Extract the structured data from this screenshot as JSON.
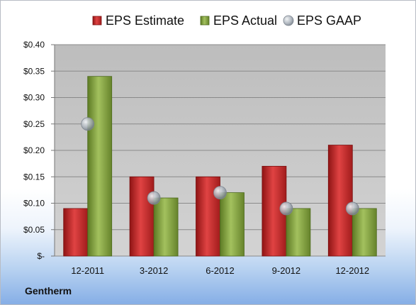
{
  "company": "Gentherm",
  "colors": {
    "estimate": "#c62b2b",
    "actual": "#7f9e3c",
    "gaap": "#9aa3ad",
    "plot_bg": "#c9c9c9"
  },
  "chart_data": {
    "type": "bar",
    "categories": [
      "12-2011",
      "3-2012",
      "6-2012",
      "9-2012",
      "12-2012"
    ],
    "series": [
      {
        "name": "EPS Estimate",
        "type": "bar",
        "values": [
          0.09,
          0.15,
          0.15,
          0.17,
          0.21
        ]
      },
      {
        "name": "EPS Actual",
        "type": "bar",
        "values": [
          0.34,
          0.11,
          0.12,
          0.09,
          0.09
        ]
      },
      {
        "name": "EPS GAAP",
        "type": "scatter",
        "values": [
          0.25,
          0.11,
          0.12,
          0.09,
          0.09
        ]
      }
    ],
    "ylim": [
      0,
      0.4
    ],
    "yticks": [
      0,
      0.05,
      0.1,
      0.15,
      0.2,
      0.25,
      0.3,
      0.35,
      0.4
    ],
    "ytick_labels": [
      "$-",
      "$0.05",
      "$0.10",
      "$0.15",
      "$0.20",
      "$0.25",
      "$0.30",
      "$0.35",
      "$0.40"
    ],
    "legend_position": "top",
    "grid": true
  }
}
